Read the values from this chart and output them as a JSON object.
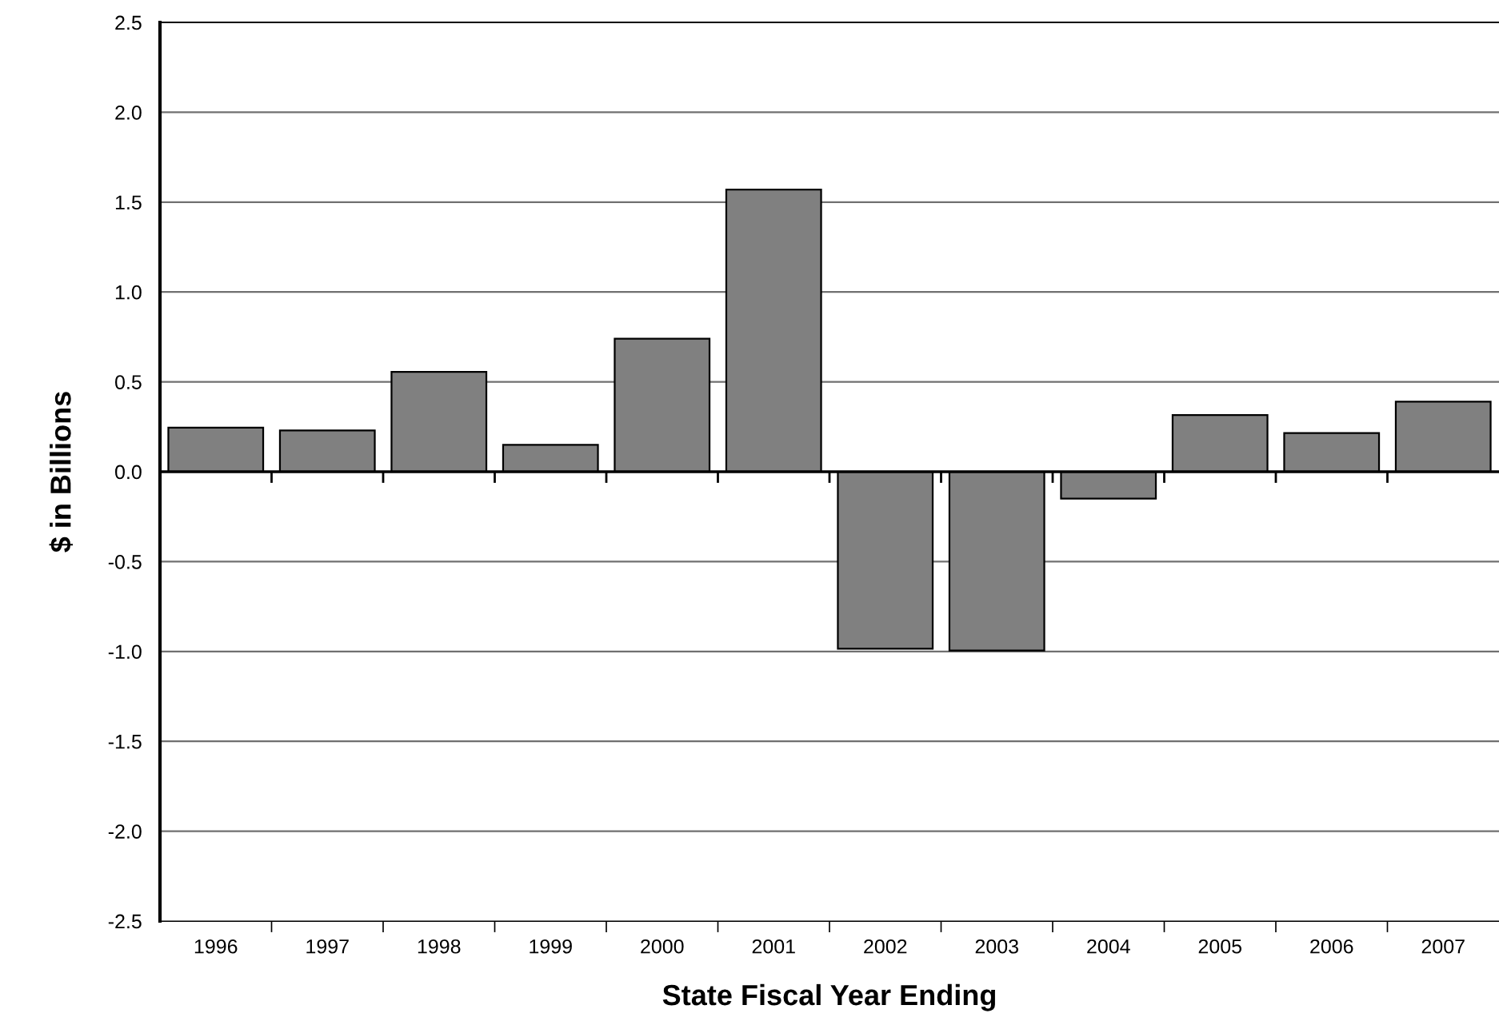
{
  "chart_data": {
    "type": "bar",
    "xlabel": "State Fiscal Year Ending",
    "ylabel": "$ in Billions",
    "categories": [
      "1996",
      "1997",
      "1998",
      "1999",
      "2000",
      "2001",
      "2002",
      "2003",
      "2004",
      "2005",
      "2006",
      "2007"
    ],
    "values": [
      0.245,
      0.23,
      0.555,
      0.15,
      0.74,
      1.57,
      -0.985,
      -0.995,
      -0.15,
      0.315,
      0.215,
      0.39
    ],
    "color": "#808080",
    "ylim": [
      -2.5,
      2.5
    ],
    "yticks": [
      {
        "value": -2.5,
        "label": "-2.5"
      },
      {
        "value": -2.0,
        "label": "-2.0"
      },
      {
        "value": -1.5,
        "label": "-1.5"
      },
      {
        "value": -1.0,
        "label": "-1.0"
      },
      {
        "value": -0.5,
        "label": "-0.5"
      },
      {
        "value": 0,
        "label": "0.0"
      },
      {
        "value": 0.5,
        "label": "0.5"
      },
      {
        "value": 1.0,
        "label": "1.0"
      },
      {
        "value": 1.5,
        "label": "1.5"
      },
      {
        "value": 2.0,
        "label": "2.0"
      },
      {
        "value": 2.5,
        "label": "2.5"
      }
    ],
    "grid": "y"
  }
}
